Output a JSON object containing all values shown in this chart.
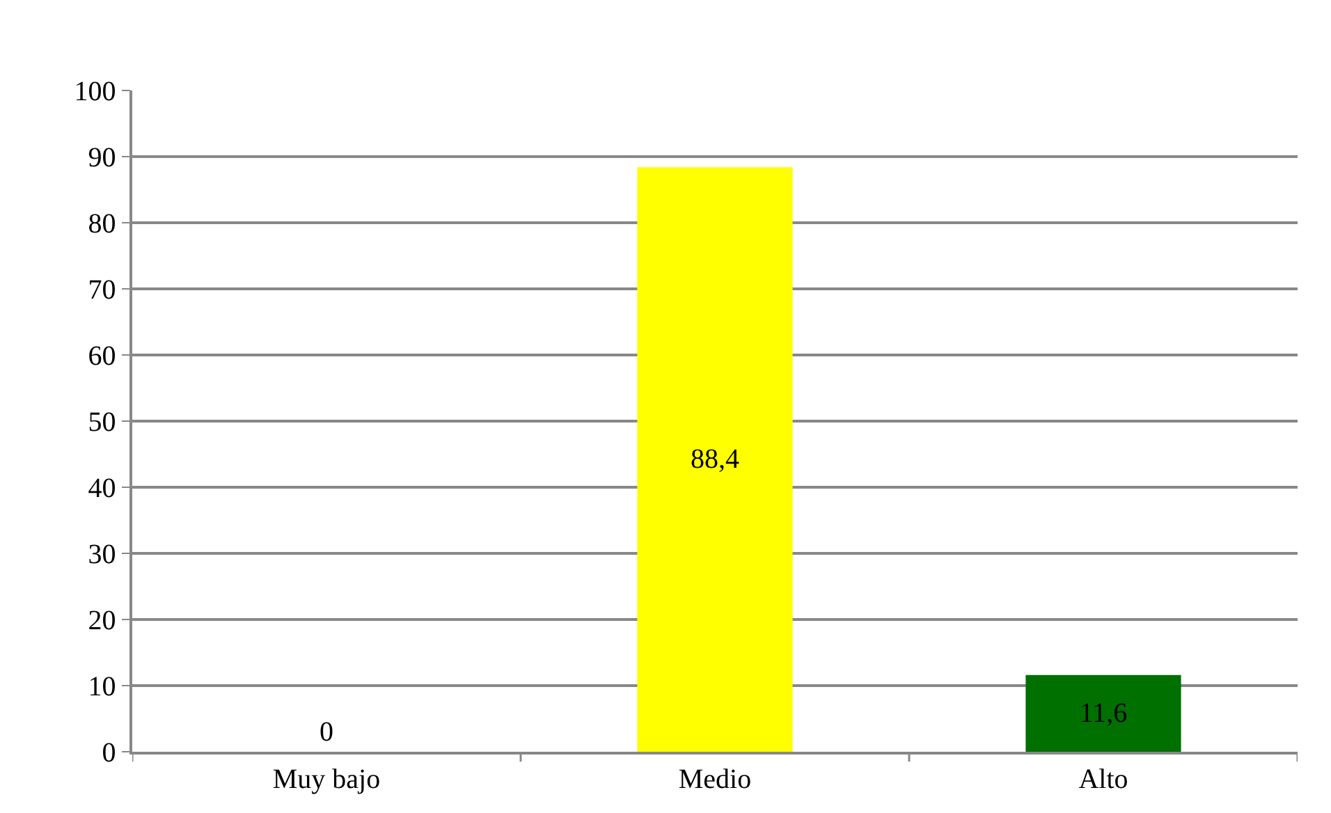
{
  "chart_data": {
    "type": "bar",
    "categories": [
      "Muy bajo",
      "Medio",
      "Alto"
    ],
    "values": [
      0,
      88.4,
      11.6
    ],
    "colors": [
      null,
      "#ffff00",
      "#007000"
    ],
    "value_labels": [
      "0",
      "88,4",
      "11,6"
    ],
    "ylim": [
      0,
      100
    ],
    "yticks": [
      0,
      10,
      20,
      30,
      40,
      50,
      60,
      70,
      80,
      90,
      100
    ],
    "grid": "y",
    "legend": false
  }
}
